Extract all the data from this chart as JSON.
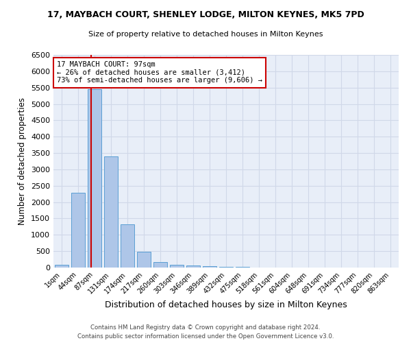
{
  "title1": "17, MAYBACH COURT, SHENLEY LODGE, MILTON KEYNES, MK5 7PD",
  "title2": "Size of property relative to detached houses in Milton Keynes",
  "xlabel": "Distribution of detached houses by size in Milton Keynes",
  "ylabel": "Number of detached properties",
  "bin_labels": [
    "1sqm",
    "44sqm",
    "87sqm",
    "131sqm",
    "174sqm",
    "217sqm",
    "260sqm",
    "303sqm",
    "346sqm",
    "389sqm",
    "432sqm",
    "475sqm",
    "518sqm",
    "561sqm",
    "604sqm",
    "648sqm",
    "691sqm",
    "734sqm",
    "777sqm",
    "820sqm",
    "863sqm"
  ],
  "bar_values": [
    75,
    2280,
    5450,
    3400,
    1320,
    490,
    160,
    85,
    60,
    45,
    30,
    15,
    10,
    5,
    3,
    2,
    1,
    1,
    1,
    0,
    0
  ],
  "bar_color": "#aec6e8",
  "bar_edgecolor": "#5a9fd4",
  "property_label": "17 MAYBACH COURT: 97sqm",
  "annotation_line1": "← 26% of detached houses are smaller (3,412)",
  "annotation_line2": "73% of semi-detached houses are larger (9,606) →",
  "red_line_color": "#cc0000",
  "annotation_box_color": "#ffffff",
  "annotation_box_edge": "#cc0000",
  "ylim": [
    0,
    6500
  ],
  "yticks": [
    0,
    500,
    1000,
    1500,
    2000,
    2500,
    3000,
    3500,
    4000,
    4500,
    5000,
    5500,
    6000,
    6500
  ],
  "grid_color": "#d0d8e8",
  "bg_color": "#e8eef8",
  "footer1": "Contains HM Land Registry data © Crown copyright and database right 2024.",
  "footer2": "Contains public sector information licensed under the Open Government Licence v3.0."
}
